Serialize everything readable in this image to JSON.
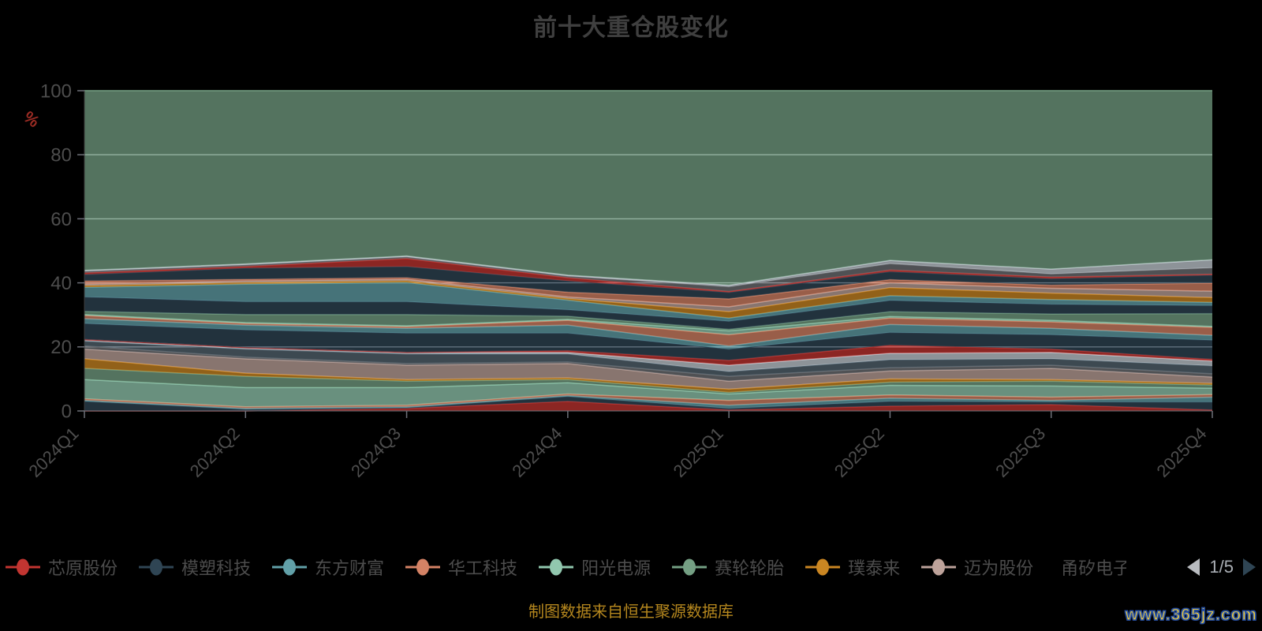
{
  "title": "前十大重仓股变化",
  "y_axis": {
    "name": "%",
    "ticks": [
      0,
      20,
      40,
      60,
      80,
      100
    ],
    "min": 0,
    "max": 100
  },
  "x_axis": {
    "categories": [
      "2024Q1",
      "2024Q2",
      "2024Q3",
      "2024Q4",
      "2025Q1",
      "2025Q2",
      "2025Q3",
      "2025Q4"
    ]
  },
  "legend": {
    "page_indicator": "1/5",
    "items": [
      {
        "label": "芯原股份",
        "color": "#c23531",
        "truncated": false
      },
      {
        "label": "模塑科技",
        "color": "#2f4554",
        "truncated": false
      },
      {
        "label": "东方财富",
        "color": "#61a0a8",
        "truncated": false
      },
      {
        "label": "华工科技",
        "color": "#d48265",
        "truncated": false
      },
      {
        "label": "阳光电源",
        "color": "#91c7ae",
        "truncated": false
      },
      {
        "label": "赛轮轮胎",
        "color": "#749f83",
        "truncated": false
      },
      {
        "label": "璞泰来",
        "color": "#ca8622",
        "truncated": false
      },
      {
        "label": "迈为股份",
        "color": "#bda29a",
        "truncated": false
      },
      {
        "label": "甬矽电子",
        "color": "#6e7074",
        "truncated": true
      }
    ]
  },
  "footer": {
    "source_note": "制图数据来自恒生聚源数据库",
    "watermark": "www.365jz.com"
  },
  "colors": {
    "background": "#000000",
    "title_text": "#3f3f3f",
    "axis_text": "#4d4d4d",
    "axis_line": "#6e7079",
    "grid_line": "#e0e3e8",
    "legend_text": "#4c4c4c",
    "y_name_text": "#9c2c24",
    "pager_prev": "#b9bcc0",
    "pager_next": "#2f4554",
    "source_text": "#b5871e",
    "watermark_fill": "#f2cc38",
    "watermark_stroke": "#2b55a7"
  },
  "chart_data": {
    "type": "area",
    "stacked": true,
    "percent_stack_total": 100,
    "grid": true,
    "legend_position": "bottom",
    "x": [
      "2024Q1",
      "2024Q2",
      "2024Q3",
      "2024Q4",
      "2025Q1",
      "2025Q2",
      "2025Q3",
      "2025Q4"
    ],
    "xlabel": "",
    "ylabel": "%",
    "ylim": [
      0,
      100
    ],
    "fill_opacity": 0.72,
    "series": [
      {
        "name": "芯原股份",
        "color": "#c23531",
        "label_visible": true,
        "values": [
          0,
          0,
          0.8,
          3,
          0.3,
          1.5,
          2,
          0.3
        ]
      },
      {
        "name": "模塑科技",
        "color": "#2f4554",
        "label_visible": true,
        "values": [
          3,
          0.5,
          0.2,
          1.5,
          0.5,
          1.5,
          0.8,
          2.5
        ]
      },
      {
        "name": "东方财富",
        "color": "#61a0a8",
        "label_visible": true,
        "values": [
          0.3,
          0.3,
          0.3,
          0.3,
          1,
          1,
          0.5,
          1.5
        ]
      },
      {
        "name": "华工科技",
        "color": "#d48265",
        "label_visible": true,
        "values": [
          0.5,
          0.5,
          0.5,
          0.5,
          1.5,
          1,
          1,
          0.8
        ]
      },
      {
        "name": "阳光电源",
        "color": "#91c7ae",
        "label_visible": true,
        "values": [
          6,
          6,
          5.5,
          3.5,
          2,
          3,
          3.5,
          2
        ]
      },
      {
        "name": "赛轮轮胎",
        "color": "#749f83",
        "label_visible": true,
        "values": [
          3.5,
          3.5,
          2,
          1,
          0.5,
          1,
          1.5,
          1
        ]
      },
      {
        "name": "璞泰来",
        "color": "#ca8622",
        "label_visible": true,
        "values": [
          3,
          1,
          0.5,
          0.5,
          1,
          1,
          0.5,
          0.5
        ]
      },
      {
        "name": "迈为股份",
        "color": "#bda29a",
        "label_visible": true,
        "values": [
          3,
          4.5,
          4.5,
          4.5,
          2.5,
          2.5,
          3.5,
          2
        ]
      },
      {
        "name": "甬矽电子",
        "color": "#6e7074",
        "label_visible": true,
        "values": [
          1,
          0.5,
          0.5,
          0.5,
          1.5,
          1,
          1,
          1
        ]
      },
      {
        "name": "",
        "color": "#546570",
        "label_visible": false,
        "values": [
          1.5,
          2.5,
          3,
          2.5,
          1.5,
          2.5,
          2,
          2.5
        ]
      },
      {
        "name": "",
        "color": "#c4ccd3",
        "label_visible": false,
        "values": [
          0.5,
          0.5,
          0.5,
          0.5,
          2,
          2,
          2,
          1.5
        ]
      },
      {
        "name": "",
        "color": "#c23531",
        "label_visible": false,
        "values": [
          0,
          0,
          0,
          0.5,
          1.5,
          2.5,
          1,
          0.5
        ]
      },
      {
        "name": "",
        "color": "#2f4554",
        "label_visible": false,
        "values": [
          5,
          5.5,
          6,
          5.5,
          3.5,
          4,
          4.5,
          6
        ]
      },
      {
        "name": "",
        "color": "#61a0a8",
        "label_visible": false,
        "values": [
          1.5,
          1.5,
          1.5,
          2.5,
          1,
          2.5,
          2,
          1.5
        ]
      },
      {
        "name": "",
        "color": "#d48265",
        "label_visible": false,
        "values": [
          1,
          0.5,
          0.5,
          1.5,
          3.5,
          2,
          2,
          2.5
        ]
      },
      {
        "name": "",
        "color": "#91c7ae",
        "label_visible": false,
        "values": [
          0.3,
          0.3,
          0.3,
          0.3,
          1.2,
          0.5,
          0.5,
          0.3
        ]
      },
      {
        "name": "",
        "color": "#749f83",
        "label_visible": false,
        "values": [
          1,
          2.5,
          3.5,
          1,
          0.5,
          1.5,
          2,
          4
        ]
      },
      {
        "name": "",
        "color": "#2f4554",
        "label_visible": false,
        "values": [
          4.5,
          4,
          4,
          2,
          2.5,
          3.5,
          3,
          2.5
        ]
      },
      {
        "name": "",
        "color": "#61a0a8",
        "label_visible": false,
        "values": [
          3,
          5.5,
          6,
          3,
          1,
          1.5,
          1.5,
          1
        ]
      },
      {
        "name": "",
        "color": "#ca8622",
        "label_visible": false,
        "values": [
          0.5,
          0.5,
          0.5,
          0.5,
          2,
          2.5,
          2,
          1.5
        ]
      },
      {
        "name": "",
        "color": "#bda29a",
        "label_visible": false,
        "values": [
          0.5,
          0.5,
          0.5,
          0.5,
          1.5,
          1.5,
          1.5,
          2
        ]
      },
      {
        "name": "",
        "color": "#d48265",
        "label_visible": false,
        "values": [
          1,
          0.5,
          0.5,
          1.5,
          2.5,
          1,
          1,
          2.5
        ]
      },
      {
        "name": "",
        "color": "#2f4554",
        "label_visible": false,
        "values": [
          2,
          3.5,
          3.5,
          3.5,
          2,
          2.5,
          2,
          2.5
        ]
      },
      {
        "name": "",
        "color": "#c23531",
        "label_visible": false,
        "values": [
          0.5,
          0.5,
          2.5,
          1,
          0.3,
          0.5,
          0.5,
          0.3
        ]
      },
      {
        "name": "",
        "color": "#6e7074",
        "label_visible": false,
        "values": [
          0.5,
          0.5,
          0.5,
          0.5,
          1.5,
          2,
          1,
          2
        ]
      },
      {
        "name": "",
        "color": "#c4ccd3",
        "label_visible": false,
        "values": [
          0.3,
          0.3,
          0.3,
          0.3,
          0.5,
          1,
          1.5,
          2.5
        ]
      }
    ],
    "remainder_series": {
      "name": "",
      "color": "#749f83",
      "label_visible": false,
      "fills_to": 100
    }
  }
}
